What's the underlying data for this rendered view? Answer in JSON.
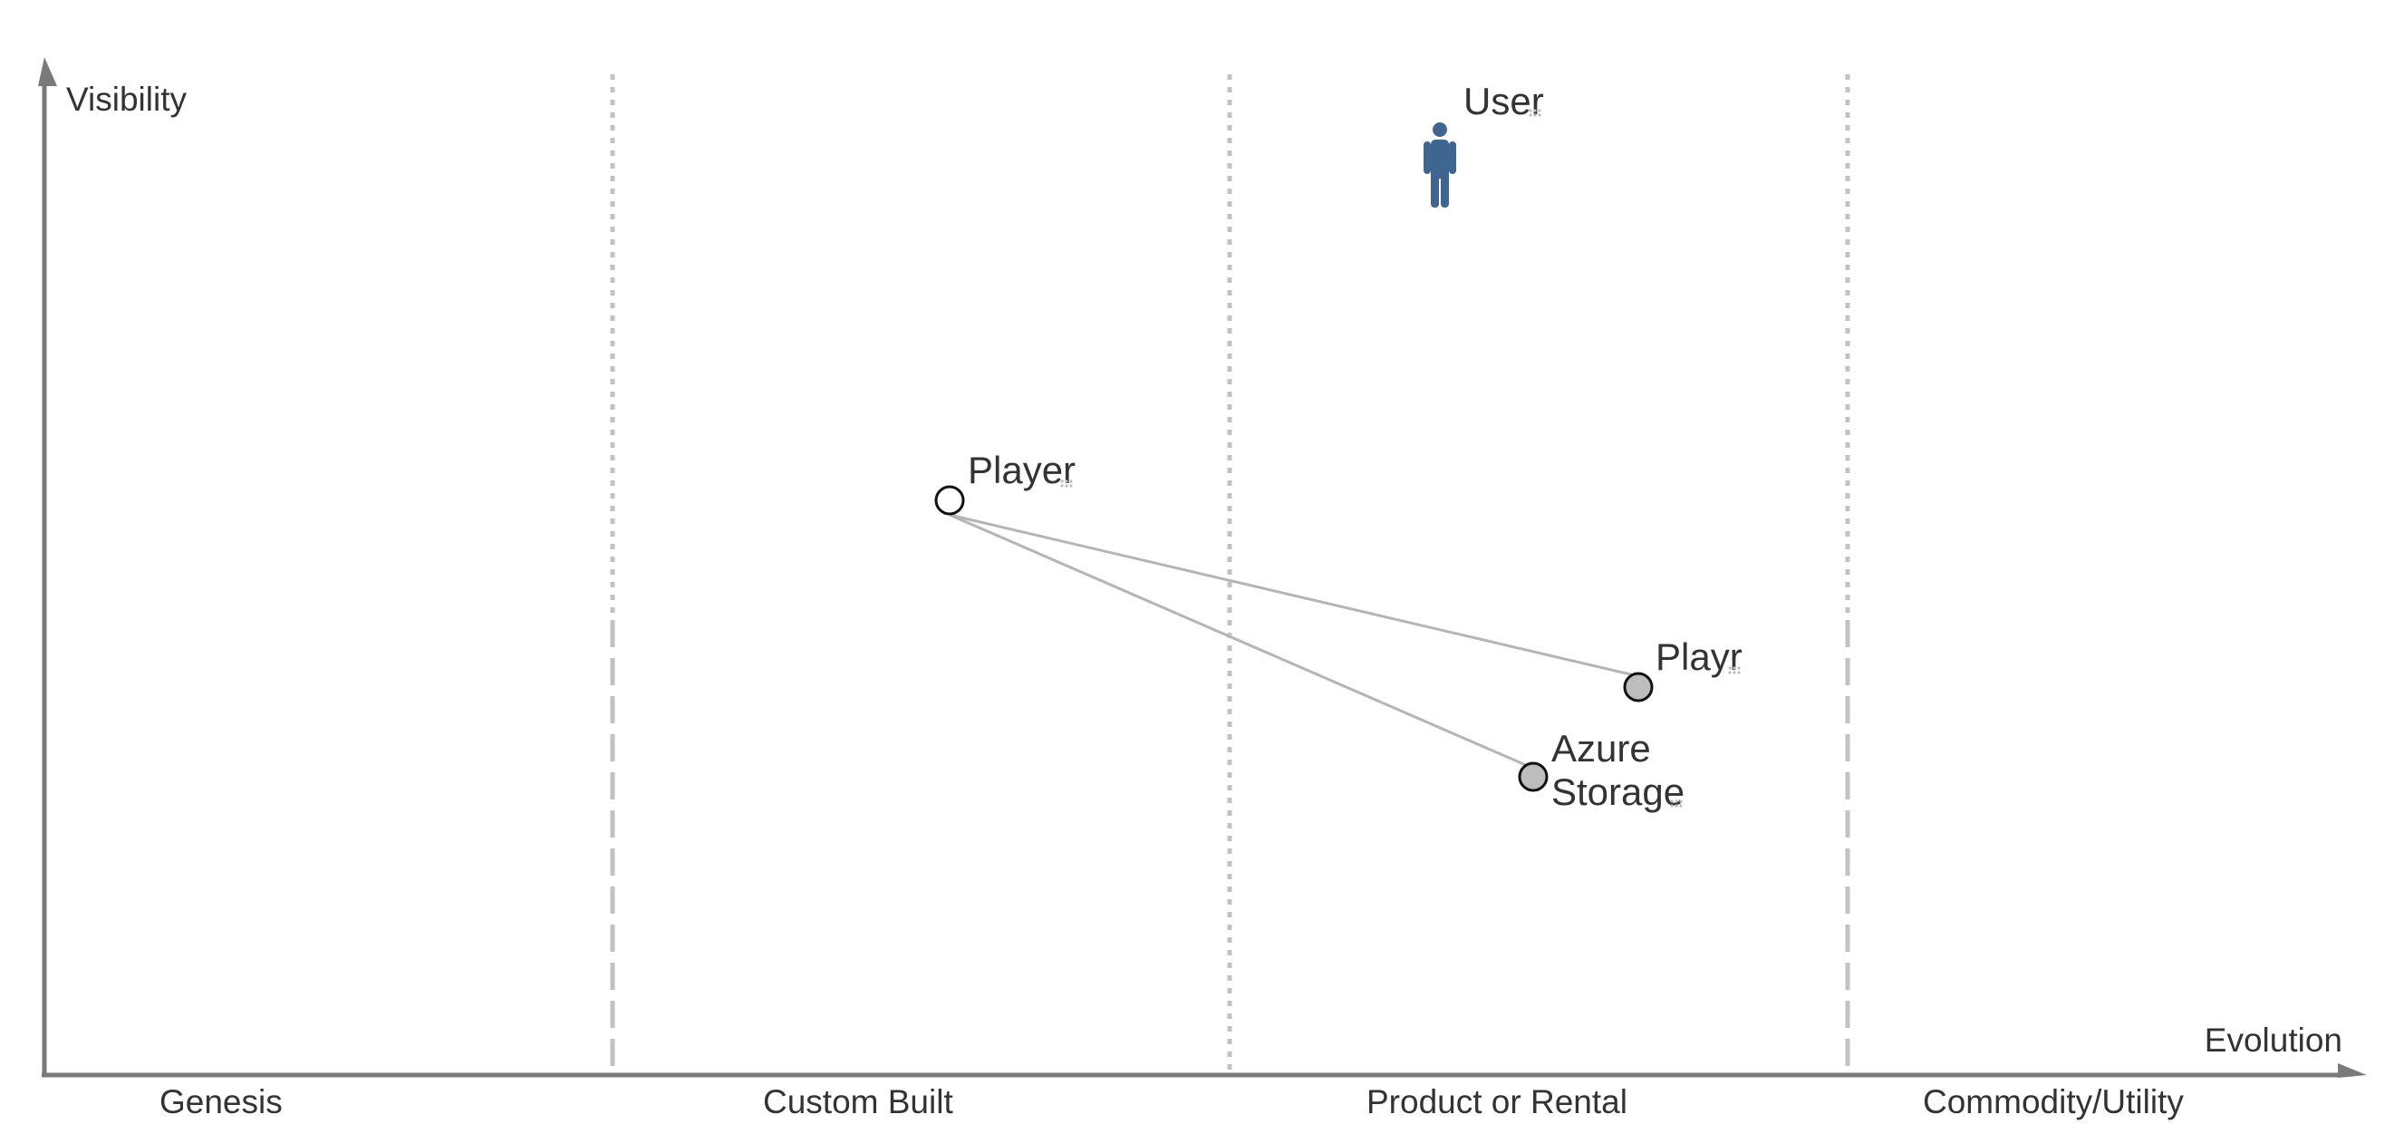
{
  "axes": {
    "y_label": "Visibility",
    "x_label": "Evolution"
  },
  "stages": [
    {
      "label": "Genesis"
    },
    {
      "label": "Custom Built"
    },
    {
      "label": "Product or Rental"
    },
    {
      "label": "Commodity/Utility"
    }
  ],
  "components": {
    "user": {
      "lines": [
        "User"
      ],
      "type": "user",
      "color": "#3f6690"
    },
    "player": {
      "lines": [
        "Player"
      ],
      "fill": "#ffffff"
    },
    "playr": {
      "lines": [
        "Playr"
      ],
      "fill": "#bdbdbd"
    },
    "azure_storage": {
      "lines": [
        "Azure",
        "Storage"
      ],
      "fill": "#bdbdbd"
    }
  },
  "links": [
    {
      "from": "player",
      "to": "playr"
    },
    {
      "from": "player",
      "to": "azure_storage"
    }
  ]
}
